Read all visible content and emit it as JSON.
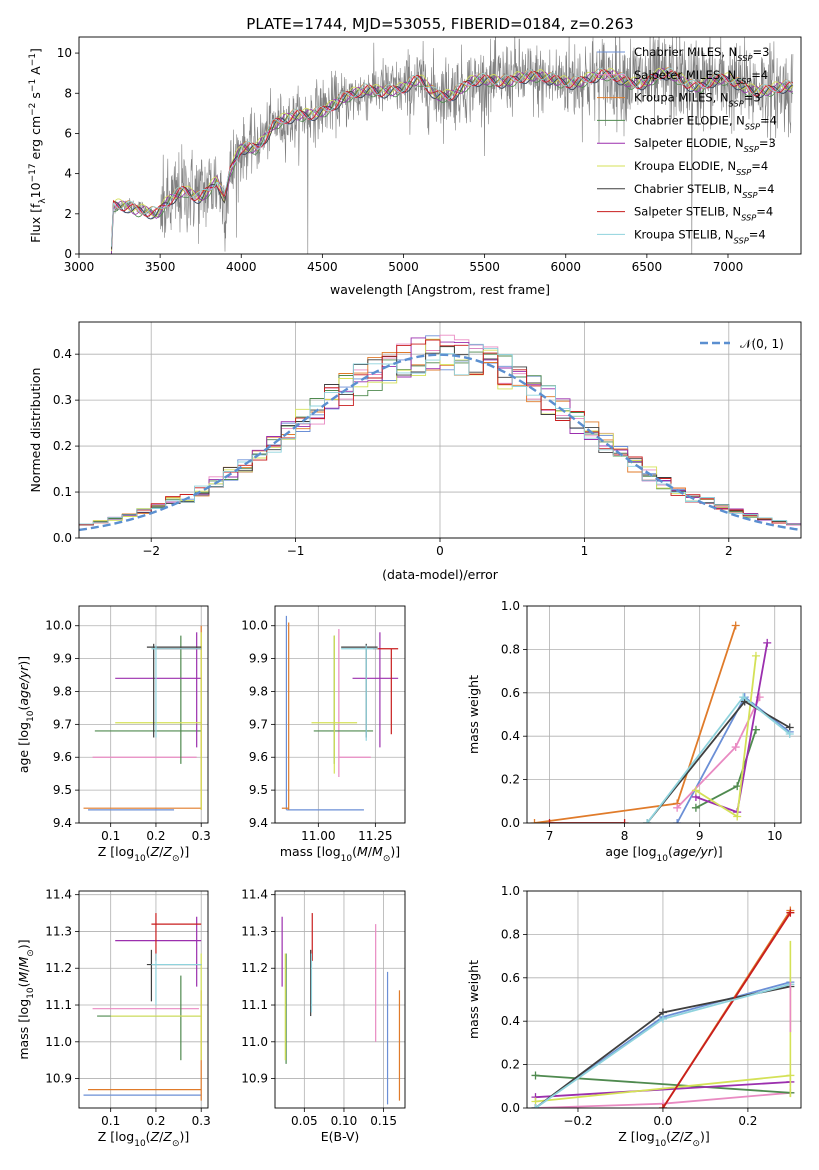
{
  "figure_title": "PLATE=1744, MJD=53055, FIBERID=0184, z=0.263",
  "colors": {
    "Chabrier MILES": "#6b8fd6",
    "Salpeter MILES": "#e98ac2",
    "Kroupa MILES": "#e07b2a",
    "Chabrier ELODIE": "#4f8a4f",
    "Salpeter ELODIE": "#9b2fae",
    "Kroupa ELODIE": "#d4e157",
    "Chabrier STELIB": "#3f3f3f",
    "Salpeter STELIB": "#c81e1e",
    "Kroupa STELIB": "#8fd3dd",
    "data": "#808080",
    "gaussian": "#5b8fd0"
  },
  "chart_data": [
    {
      "id": "spectrum",
      "type": "line",
      "xlabel": "wavelength [Angstrom, rest frame]",
      "ylabel": "Flux [f_λ 10^-17 erg cm^-2 s^-1 A^-1]",
      "xlim": [
        3000,
        7450
      ],
      "ylim": [
        0,
        10.8
      ],
      "xticks": [
        "3000",
        "3500",
        "4000",
        "4500",
        "5000",
        "5500",
        "6000",
        "6500",
        "7000"
      ],
      "yticks": [
        "0",
        "2",
        "4",
        "6",
        "8",
        "10"
      ],
      "grid": false,
      "legend_position": "right",
      "legend": [
        {
          "name": "Chabrier MILES",
          "nssp": "3"
        },
        {
          "name": "Salpeter MILES",
          "nssp": "4"
        },
        {
          "name": "Kroupa MILES",
          "nssp": "3"
        },
        {
          "name": "Chabrier ELODIE",
          "nssp": "4"
        },
        {
          "name": "Salpeter ELODIE",
          "nssp": "3"
        },
        {
          "name": "Kroupa ELODIE",
          "nssp": "4"
        },
        {
          "name": "Chabrier STELIB",
          "nssp": "4"
        },
        {
          "name": "Salpeter STELIB",
          "nssp": "4"
        },
        {
          "name": "Kroupa STELIB",
          "nssp": "4"
        }
      ],
      "data_range": [
        3200,
        7400
      ],
      "continuum_points": [
        [
          3200,
          0
        ],
        [
          3210,
          2.3
        ],
        [
          3300,
          2.5
        ],
        [
          3400,
          2.3
        ],
        [
          3480,
          1.9
        ],
        [
          3560,
          2.5
        ],
        [
          3650,
          3.2
        ],
        [
          3750,
          3.0
        ],
        [
          3850,
          3.6
        ],
        [
          3900,
          2.5
        ],
        [
          3930,
          3.9
        ],
        [
          4000,
          5.2
        ],
        [
          4100,
          5.5
        ],
        [
          4200,
          6.5
        ],
        [
          4300,
          6.6
        ],
        [
          4400,
          6.9
        ],
        [
          4500,
          7.3
        ],
        [
          4600,
          7.6
        ],
        [
          4700,
          7.8
        ],
        [
          4800,
          8.2
        ],
        [
          4900,
          8.3
        ],
        [
          5000,
          8.2
        ],
        [
          5100,
          8.5
        ],
        [
          5200,
          8.0
        ],
        [
          5300,
          8.1
        ],
        [
          5400,
          8.4
        ],
        [
          5500,
          8.5
        ],
        [
          5600,
          8.7
        ],
        [
          5700,
          8.9
        ],
        [
          5800,
          8.7
        ],
        [
          5900,
          8.6
        ],
        [
          6000,
          8.7
        ],
        [
          6100,
          8.7
        ],
        [
          6200,
          8.7
        ],
        [
          6300,
          8.8
        ],
        [
          6400,
          8.7
        ],
        [
          6500,
          8.6
        ],
        [
          6600,
          8.8
        ],
        [
          6700,
          8.7
        ],
        [
          6800,
          8.5
        ],
        [
          6900,
          8.6
        ],
        [
          7000,
          8.5
        ],
        [
          7100,
          8.3
        ],
        [
          7200,
          8.3
        ],
        [
          7300,
          8.2
        ],
        [
          7400,
          8.1
        ]
      ]
    },
    {
      "id": "residuals",
      "type": "histogram",
      "xlabel": "(data-model)/error",
      "ylabel": "Normed distribution",
      "xlim": [
        -2.5,
        2.5
      ],
      "ylim": [
        0,
        0.47
      ],
      "xticks": [
        "−2",
        "−1",
        "0",
        "1",
        "2"
      ],
      "yticks": [
        "0.0",
        "0.1",
        "0.2",
        "0.3",
        "0.4"
      ],
      "grid": true,
      "legend_position": "top-right",
      "legend": [
        "𝒩(0, 1)"
      ],
      "bin_width": 0.1,
      "curve": "gaussian mean 0 sigma 1"
    },
    {
      "id": "age-Z",
      "type": "scatter",
      "xlabel": "Z [log10(Z/Z⊙)]",
      "ylabel": "age [log10(age/yr)]",
      "xlim": [
        0.03,
        0.315
      ],
      "ylim": [
        9.4,
        10.06
      ],
      "xticks": [
        "0.1",
        "0.2",
        "0.3"
      ],
      "yticks": [
        "9.4",
        "9.5",
        "9.6",
        "9.7",
        "9.8",
        "9.9",
        "10.0"
      ],
      "grid": true,
      "points": [
        {
          "model": "Chabrier MILES",
          "x": 0.05,
          "xerr": [
            0.05,
            0.24
          ],
          "y": 9.44,
          "yerr": [
            9.44,
            9.44
          ]
        },
        {
          "model": "Salpeter MILES",
          "x": 0.06,
          "xerr": [
            0.06,
            0.29
          ],
          "y": 9.6,
          "yerr": [
            9.6,
            9.6
          ]
        },
        {
          "model": "Kroupa MILES",
          "x": 0.3,
          "xerr": [
            0.04,
            0.3
          ],
          "y": 9.445,
          "yerr": [
            9.44,
            10.0
          ]
        },
        {
          "model": "Chabrier ELODIE",
          "x": 0.255,
          "xerr": [
            0.065,
            0.3
          ],
          "y": 9.68,
          "yerr": [
            9.58,
            9.97
          ]
        },
        {
          "model": "Salpeter ELODIE",
          "x": 0.29,
          "xerr": [
            0.11,
            0.3
          ],
          "y": 9.84,
          "yerr": [
            9.63,
            9.98
          ]
        },
        {
          "model": "Kroupa ELODIE",
          "x": 0.3,
          "xerr": [
            0.11,
            0.3
          ],
          "y": 9.705,
          "yerr": [
            9.44,
            9.98
          ]
        },
        {
          "model": "Chabrier STELIB",
          "x": 0.195,
          "xerr": [
            0.18,
            0.3
          ],
          "y": 9.935,
          "yerr": [
            9.66,
            9.945
          ]
        },
        {
          "model": "Salpeter STELIB",
          "x": 0.3,
          "xerr": [
            0.2,
            0.3
          ],
          "y": 9.93,
          "yerr": [
            9.93,
            9.93
          ]
        },
        {
          "model": "Kroupa STELIB",
          "x": 0.2,
          "xerr": [
            0.19,
            0.3
          ],
          "y": 9.93,
          "yerr": [
            9.66,
            9.94
          ]
        }
      ]
    },
    {
      "id": "age-mass",
      "type": "scatter",
      "xlabel": "mass [log10(M/M⊙)]",
      "ylabel": "",
      "xlim": [
        10.81,
        11.38
      ],
      "ylim": [
        9.4,
        10.06
      ],
      "xticks": [
        "11.00",
        "11.25"
      ],
      "yticks": [
        "9.4",
        "9.5",
        "9.6",
        "9.7",
        "9.8",
        "9.9",
        "10.0"
      ],
      "grid": true,
      "points": [
        {
          "model": "Chabrier MILES",
          "x": 10.86,
          "xerr": [
            10.86,
            11.2
          ],
          "y": 9.44,
          "yerr": [
            9.44,
            10.03
          ]
        },
        {
          "model": "Salpeter MILES",
          "x": 11.09,
          "xerr": [
            11.09,
            11.23
          ],
          "y": 9.6,
          "yerr": [
            9.54,
            9.99
          ]
        },
        {
          "model": "Kroupa MILES",
          "x": 10.87,
          "xerr": [
            10.84,
            10.87
          ],
          "y": 9.445,
          "yerr": [
            9.44,
            10.01
          ]
        },
        {
          "model": "Chabrier ELODIE",
          "x": 11.07,
          "xerr": [
            10.98,
            11.24
          ],
          "y": 9.68,
          "yerr": [
            9.58,
            9.97
          ]
        },
        {
          "model": "Salpeter ELODIE",
          "x": 11.27,
          "xerr": [
            11.15,
            11.35
          ],
          "y": 9.84,
          "yerr": [
            9.63,
            9.98
          ]
        },
        {
          "model": "Kroupa ELODIE",
          "x": 11.07,
          "xerr": [
            10.97,
            11.17
          ],
          "y": 9.705,
          "yerr": [
            9.55,
            9.97
          ]
        },
        {
          "model": "Chabrier STELIB",
          "x": 11.21,
          "xerr": [
            11.1,
            11.26
          ],
          "y": 9.935,
          "yerr": [
            9.66,
            9.945
          ]
        },
        {
          "model": "Salpeter STELIB",
          "x": 11.32,
          "xerr": [
            11.24,
            11.35
          ],
          "y": 9.93,
          "yerr": [
            9.67,
            9.93
          ]
        },
        {
          "model": "Kroupa STELIB",
          "x": 11.21,
          "xerr": [
            11.1,
            11.26
          ],
          "y": 9.93,
          "yerr": [
            9.65,
            9.94
          ]
        }
      ]
    },
    {
      "id": "mass-weight-age",
      "type": "line",
      "xlabel": "age [log10(age/yr)]",
      "ylabel": "mass weight",
      "xlim": [
        6.7,
        10.35
      ],
      "ylim": [
        0,
        1.0
      ],
      "xticks": [
        "7",
        "8",
        "9",
        "10"
      ],
      "yticks": [
        "0.0",
        "0.2",
        "0.4",
        "0.6",
        "0.8",
        "1.0"
      ],
      "grid": true,
      "series": [
        {
          "model": "Kroupa MILES",
          "x": [
            6.8,
            8.7,
            9.48
          ],
          "y": [
            0.0,
            0.09,
            0.91
          ]
        },
        {
          "model": "Chabrier MILES",
          "x": [
            8.7,
            9.6,
            10.2
          ],
          "y": [
            0.0,
            0.58,
            0.42
          ]
        },
        {
          "model": "Salpeter MILES",
          "x": [
            8.7,
            9.48,
            9.8
          ],
          "y": [
            0.07,
            0.35,
            0.58
          ]
        },
        {
          "model": "Chabrier ELODIE",
          "x": [
            8.95,
            9.5,
            9.75
          ],
          "y": [
            0.07,
            0.17,
            0.43
          ]
        },
        {
          "model": "Salpeter ELODIE",
          "x": [
            8.95,
            9.5,
            9.9
          ],
          "y": [
            0.12,
            0.05,
            0.83
          ]
        },
        {
          "model": "Kroupa ELODIE",
          "x": [
            8.95,
            9.5,
            9.75
          ],
          "y": [
            0.15,
            0.03,
            0.77
          ]
        },
        {
          "model": "Chabrier STELIB",
          "x": [
            8.3,
            9.6,
            10.2
          ],
          "y": [
            0.0,
            0.56,
            0.44
          ]
        },
        {
          "model": "Salpeter STELIB",
          "x": [
            7.0,
            8.0
          ],
          "y": [
            0.0,
            0.0
          ]
        },
        {
          "model": "Kroupa STELIB",
          "x": [
            8.3,
            9.58,
            10.2
          ],
          "y": [
            0.0,
            0.58,
            0.41
          ]
        }
      ]
    },
    {
      "id": "mass-Z",
      "type": "scatter",
      "xlabel": "Z [log10(Z/Z⊙)]",
      "ylabel": "mass [log10(M/M⊙)]",
      "xlim": [
        0.03,
        0.315
      ],
      "ylim": [
        10.82,
        11.41
      ],
      "xticks": [
        "0.1",
        "0.2",
        "0.3"
      ],
      "yticks": [
        "10.9",
        "11.0",
        "11.1",
        "11.2",
        "11.3",
        "11.4"
      ],
      "grid": true,
      "points": [
        {
          "model": "Chabrier MILES",
          "x": 0.3,
          "xerr": [
            0.04,
            0.3
          ],
          "y": 10.855,
          "yerr": [
            10.855,
            10.855
          ]
        },
        {
          "model": "Salpeter MILES",
          "x": 0.06,
          "xerr": [
            0.06,
            0.295
          ],
          "y": 11.09,
          "yerr": [
            11.09,
            11.09
          ]
        },
        {
          "model": "Kroupa MILES",
          "x": 0.3,
          "xerr": [
            0.05,
            0.3
          ],
          "y": 10.87,
          "yerr": [
            10.84,
            11.14
          ]
        },
        {
          "model": "Chabrier ELODIE",
          "x": 0.255,
          "xerr": [
            0.07,
            0.3
          ],
          "y": 11.07,
          "yerr": [
            10.95,
            11.18
          ]
        },
        {
          "model": "Salpeter ELODIE",
          "x": 0.29,
          "xerr": [
            0.11,
            0.3
          ],
          "y": 11.275,
          "yerr": [
            11.15,
            11.34
          ]
        },
        {
          "model": "Kroupa ELODIE",
          "x": 0.3,
          "xerr": [
            0.1,
            0.3
          ],
          "y": 11.07,
          "yerr": [
            10.95,
            11.24
          ]
        },
        {
          "model": "Chabrier STELIB",
          "x": 0.19,
          "xerr": [
            0.18,
            0.3
          ],
          "y": 11.21,
          "yerr": [
            11.11,
            11.25
          ]
        },
        {
          "model": "Salpeter STELIB",
          "x": 0.2,
          "xerr": [
            0.19,
            0.3
          ],
          "y": 11.32,
          "yerr": [
            11.22,
            11.35
          ]
        },
        {
          "model": "Kroupa STELIB",
          "x": 0.2,
          "xerr": [
            0.19,
            0.3
          ],
          "y": 11.21,
          "yerr": [
            11.1,
            11.24
          ]
        }
      ]
    },
    {
      "id": "mass-EBV",
      "type": "scatter",
      "xlabel": "E(B-V)",
      "ylabel": "",
      "xlim": [
        0.013,
        0.177
      ],
      "ylim": [
        10.82,
        11.41
      ],
      "xticks": [
        "0.05",
        "0.10",
        "0.15"
      ],
      "yticks": [
        "10.9",
        "11.0",
        "11.1",
        "11.2",
        "11.3",
        "11.4"
      ],
      "grid": true,
      "points": [
        {
          "model": "Chabrier MILES",
          "x": 0.155,
          "y": 10.855,
          "yerr": [
            10.83,
            11.19
          ]
        },
        {
          "model": "Salpeter MILES",
          "x": 0.14,
          "y": 11.09,
          "yerr": [
            11.0,
            11.32
          ]
        },
        {
          "model": "Kroupa MILES",
          "x": 0.17,
          "y": 10.87,
          "yerr": [
            10.84,
            11.14
          ]
        },
        {
          "model": "Chabrier ELODIE",
          "x": 0.027,
          "y": 11.07,
          "yerr": [
            10.94,
            11.24
          ]
        },
        {
          "model": "Salpeter ELODIE",
          "x": 0.022,
          "y": 11.275,
          "yerr": [
            11.15,
            11.34
          ]
        },
        {
          "model": "Kroupa ELODIE",
          "x": 0.026,
          "y": 11.07,
          "yerr": [
            10.95,
            11.24
          ]
        },
        {
          "model": "Chabrier STELIB",
          "x": 0.058,
          "y": 11.21,
          "yerr": [
            11.07,
            11.25
          ]
        },
        {
          "model": "Salpeter STELIB",
          "x": 0.06,
          "y": 11.32,
          "yerr": [
            11.22,
            11.35
          ]
        },
        {
          "model": "Kroupa STELIB",
          "x": 0.059,
          "y": 11.21,
          "yerr": [
            11.08,
            11.24
          ]
        }
      ]
    },
    {
      "id": "mass-weight-Z",
      "type": "line",
      "xlabel": "Z [log10(Z/Z⊙)]",
      "ylabel": "mass weight",
      "xlim": [
        -0.32,
        0.325
      ],
      "ylim": [
        0,
        1.0
      ],
      "xticks": [
        "−0.2",
        "0.0",
        "0.2"
      ],
      "yticks": [
        "0.0",
        "0.2",
        "0.4",
        "0.6",
        "0.8",
        "1.0"
      ],
      "grid": true,
      "series": [
        {
          "model": "Chabrier MILES",
          "x": [
            -0.3,
            0.0,
            0.3
          ],
          "y": [
            0.0,
            0.42,
            0.58
          ]
        },
        {
          "model": "Salpeter MILES",
          "x": [
            -0.3,
            0.0,
            0.3
          ],
          "y": [
            0.0,
            0.02,
            0.07
          ]
        },
        {
          "model": "Kroupa MILES",
          "x": [
            0.0,
            0.3
          ],
          "y": [
            0.0,
            0.91
          ]
        },
        {
          "model": "Chabrier ELODIE",
          "x": [
            -0.3,
            0.3
          ],
          "y": [
            0.15,
            0.07
          ]
        },
        {
          "model": "Salpeter ELODIE",
          "x": [
            -0.3,
            0.3
          ],
          "y": [
            0.05,
            0.12
          ]
        },
        {
          "model": "Kroupa ELODIE",
          "x": [
            -0.3,
            0.3
          ],
          "y": [
            0.03,
            0.15
          ]
        },
        {
          "model": "Chabrier STELIB",
          "x": [
            -0.3,
            0.0,
            0.3
          ],
          "y": [
            0.0,
            0.44,
            0.56
          ]
        },
        {
          "model": "Salpeter STELIB",
          "x": [
            0.0,
            0.3
          ],
          "y": [
            0.0,
            0.9
          ]
        },
        {
          "model": "Kroupa STELIB",
          "x": [
            -0.3,
            0.0,
            0.3
          ],
          "y": [
            0.0,
            0.41,
            0.57
          ]
        }
      ],
      "error_markers": [
        {
          "model": "Kroupa ELODIE",
          "x": 0.3,
          "yerr": [
            0.05,
            0.77
          ]
        },
        {
          "model": "Salpeter MILES",
          "x": 0.3,
          "yerr": [
            0.35,
            0.58
          ]
        }
      ]
    }
  ]
}
